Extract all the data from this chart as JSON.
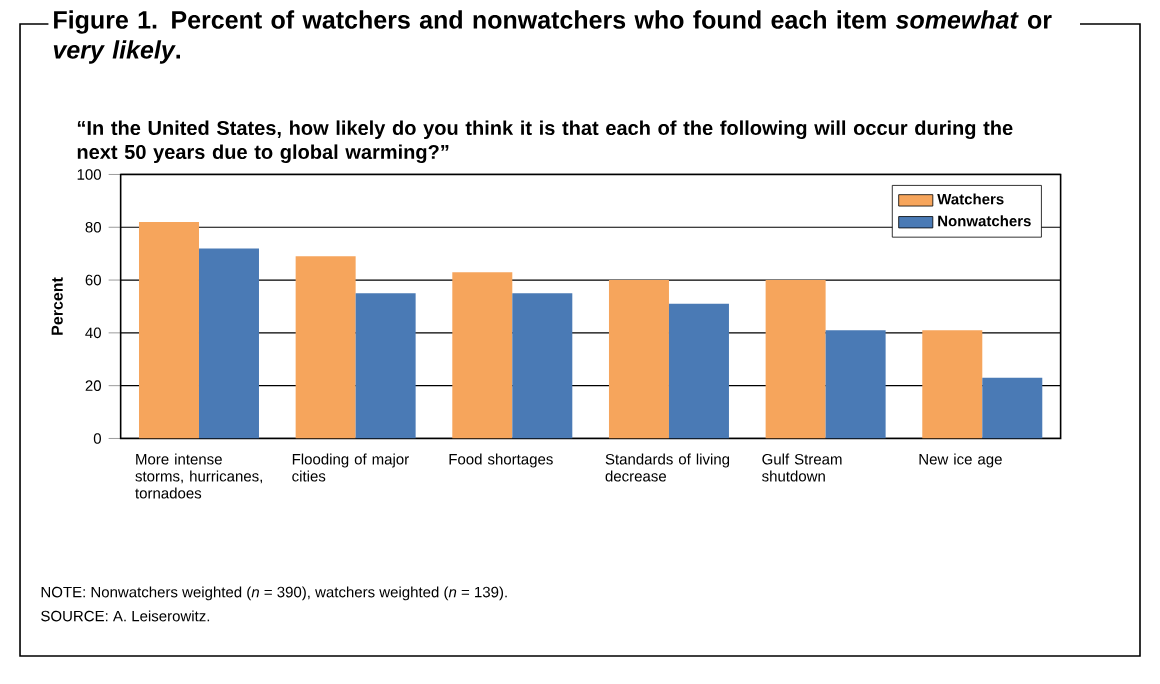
{
  "chart_data": {
    "type": "bar",
    "title": "Figure 1. Percent of watchers and nonwatchers who found each item *somewhat* or *very likely*.",
    "subtitle": "“In the United States, how likely do you think it is that each of the following will occur during the next 50 years due to global warming?”",
    "ylabel": "Percent",
    "categories": [
      "More intense storms, hurricanes, tornadoes",
      "Flooding of major cities",
      "Food shortages",
      "Standards of living decrease",
      "Gulf Stream shutdown",
      "New ice age"
    ],
    "series": [
      {
        "name": "Watchers",
        "color": "#f6a55c",
        "values": [
          82,
          69,
          63,
          60,
          60,
          41
        ]
      },
      {
        "name": "Nonwatchers",
        "color": "#4a7ab5",
        "values": [
          72,
          55,
          55,
          51,
          41,
          23
        ]
      }
    ],
    "ylim": [
      0,
      100
    ],
    "yticks": [
      0,
      20,
      40,
      60,
      80,
      100
    ],
    "grid": "y",
    "legend": "top right",
    "annotations": [
      "NOTE: Nonwatchers weighted (*n* = 390), watchers weighted (*n* = 139).",
      "SOURCE: A. Leiserowitz."
    ]
  }
}
